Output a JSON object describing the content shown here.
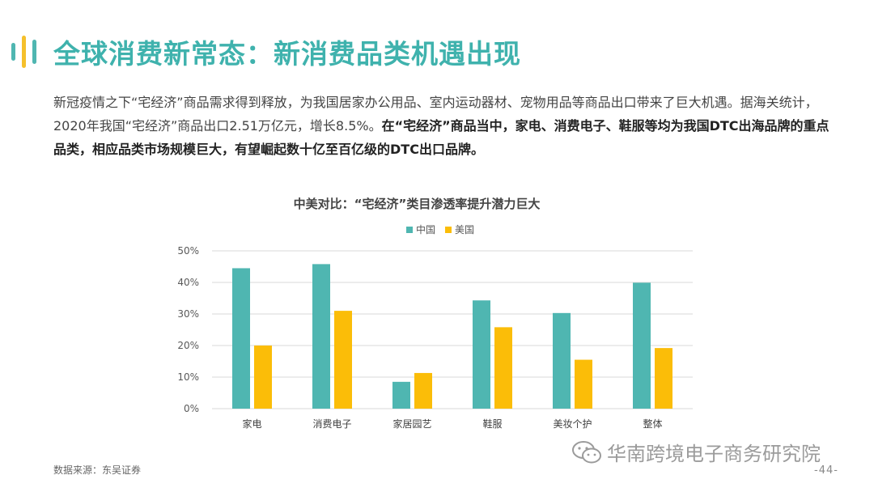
{
  "page": {
    "title": "全球消费新常态：新消费品类机遇出现",
    "intro_normal": "新冠疫情之下“宅经济”商品需求得到释放，为我国居家办公用品、室内运动器材、宠物用品等商品出口带来了巨大机遇。据海关统计，2020年我国“宅经济”商品出口2.51万亿元，增长8.5%。",
    "intro_bold": "在“宅经济”商品当中，家电、消费电子、鞋服等均为我国DTC出海品牌的重点品类，相应品类市场规模巨大，有望崛起数十亿至百亿级的DTC出口品牌。",
    "source": "数据来源：东吴证券",
    "watermark": "华南跨境电子商务研究院",
    "page_number": "-44-"
  },
  "colors": {
    "accent": "#3fb2ad",
    "china": "#4fb6b1",
    "usa": "#fbbd08",
    "deco_yellow": "#f5c02c"
  },
  "chart_data": {
    "type": "bar",
    "title": "中美对比：“宅经济”类目渗透率提升潜力巨大",
    "categories": [
      "家电",
      "消费电子",
      "家居园艺",
      "鞋服",
      "美妆个护",
      "整体"
    ],
    "series": [
      {
        "name": "中国",
        "values": [
          44.5,
          45.8,
          8.5,
          34.3,
          30.3,
          39.9
        ]
      },
      {
        "name": "美国",
        "values": [
          20.0,
          31.0,
          11.3,
          25.8,
          15.5,
          19.2
        ]
      }
    ],
    "ylim": [
      0,
      50
    ],
    "yticks": [
      0,
      10,
      20,
      30,
      40,
      50
    ],
    "ytick_labels": [
      "0%",
      "10%",
      "20%",
      "30%",
      "40%",
      "50%"
    ],
    "grid": true,
    "legend": "top-center",
    "xlabel": "",
    "ylabel": ""
  }
}
